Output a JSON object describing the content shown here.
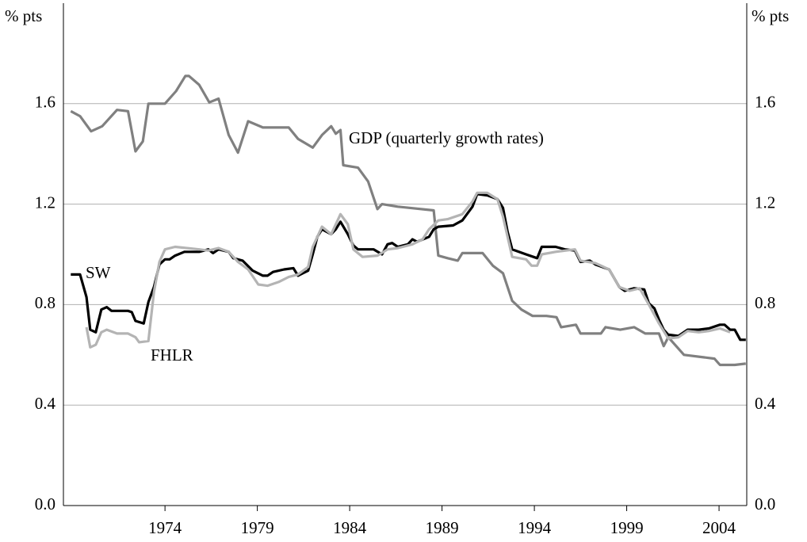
{
  "chart_data": {
    "type": "line",
    "ylabel": "% pts",
    "y2label": "% pts",
    "xlim": [
      1968.5,
      2005.5
    ],
    "xticks": [
      1974,
      1979,
      1984,
      1989,
      1994,
      1999,
      2004
    ],
    "ylim": [
      0,
      2
    ],
    "yticks": [
      {
        "value": 0,
        "label": "0.0"
      },
      0.4,
      0.8,
      1.2,
      1.6
    ],
    "y2lim": [
      0,
      2
    ],
    "y2ticks": [
      {
        "value": 0,
        "label": "0.0"
      },
      0.4,
      0.8,
      1.2,
      1.6
    ],
    "grid": true,
    "series": [
      {
        "name": "GDP (quarterly growth rates)",
        "color": "#808080",
        "x": [
          1968.9,
          1969.4,
          1970.0,
          1970.6,
          1971.4,
          1972.0,
          1972.4,
          1972.8,
          1973.1,
          1974.0,
          1974.6,
          1975.1,
          1975.3,
          1975.85,
          1976.4,
          1976.9,
          1977.45,
          1977.95,
          1978.5,
          1979.3,
          1980.7,
          1981.2,
          1982.0,
          1982.5,
          1983.0,
          1983.25,
          1983.5,
          1983.65,
          1984.45,
          1985.0,
          1985.5,
          1985.75,
          1986.6,
          1988.55,
          1988.8,
          1989.3,
          1989.85,
          1990.1,
          1991.2,
          1991.75,
          1992.3,
          1992.8,
          1993.3,
          1993.9,
          1994.65,
          1995.2,
          1995.45,
          1996.25,
          1996.5,
          1997.6,
          1997.85,
          1998.65,
          1999.4,
          2000.0,
          2000.75,
          2001.0,
          2001.25,
          2002.1,
          2003.2,
          2003.75,
          2004.05,
          2004.85,
          2005.45
        ],
        "values": [
          1.57,
          1.55,
          1.49,
          1.51,
          1.575,
          1.57,
          1.41,
          1.45,
          1.6,
          1.6,
          1.65,
          1.71,
          1.71,
          1.675,
          1.605,
          1.62,
          1.475,
          1.405,
          1.53,
          1.505,
          1.505,
          1.46,
          1.425,
          1.475,
          1.51,
          1.48,
          1.495,
          1.355,
          1.345,
          1.29,
          1.18,
          1.2,
          1.19,
          1.175,
          0.995,
          0.985,
          0.975,
          1.005,
          1.005,
          0.955,
          0.925,
          0.815,
          0.78,
          0.755,
          0.755,
          0.75,
          0.71,
          0.72,
          0.685,
          0.685,
          0.71,
          0.7,
          0.71,
          0.685,
          0.685,
          0.635,
          0.67,
          0.6,
          0.59,
          0.585,
          0.56,
          0.56,
          0.565
        ]
      },
      {
        "name": "SW",
        "color": "#000000",
        "x": [
          1968.9,
          1969.4,
          1969.75,
          1969.95,
          1970.25,
          1970.55,
          1970.85,
          1971.1,
          1972.0,
          1972.2,
          1972.4,
          1972.85,
          1973.1,
          1973.4,
          1973.7,
          1974.0,
          1974.25,
          1974.55,
          1975.05,
          1975.85,
          1976.35,
          1976.6,
          1976.9,
          1977.45,
          1977.7,
          1978.2,
          1978.75,
          1979.3,
          1979.55,
          1979.85,
          1980.45,
          1980.95,
          1981.2,
          1981.75,
          1982.0,
          1982.25,
          1982.5,
          1983.0,
          1983.25,
          1983.5,
          1983.9,
          1984.2,
          1984.45,
          1985.3,
          1985.75,
          1986.05,
          1986.3,
          1986.6,
          1987.15,
          1987.4,
          1987.65,
          1988.3,
          1988.55,
          1988.8,
          1989.6,
          1990.1,
          1990.65,
          1990.9,
          1991.45,
          1992.0,
          1992.3,
          1992.55,
          1992.8,
          1993.55,
          1994.15,
          1994.4,
          1995.15,
          1995.65,
          1996.2,
          1996.5,
          1997.0,
          1997.3,
          1998.05,
          1998.6,
          1998.9,
          1999.4,
          1999.95,
          2000.2,
          2000.5,
          2000.75,
          2001.0,
          2001.25,
          2001.8,
          2002.3,
          2002.9,
          2003.45,
          2004.05,
          2004.3,
          2004.6,
          2004.85,
          2005.15,
          2005.45
        ],
        "values": [
          0.92,
          0.92,
          0.83,
          0.7,
          0.69,
          0.78,
          0.79,
          0.775,
          0.775,
          0.77,
          0.735,
          0.725,
          0.81,
          0.87,
          0.96,
          0.98,
          0.98,
          0.995,
          1.01,
          1.01,
          1.02,
          1.005,
          1.02,
          1.01,
          0.985,
          0.975,
          0.935,
          0.915,
          0.915,
          0.93,
          0.94,
          0.945,
          0.915,
          0.935,
          1.0,
          1.07,
          1.1,
          1.08,
          1.1,
          1.13,
          1.08,
          1.035,
          1.02,
          1.02,
          1.0,
          1.04,
          1.045,
          1.03,
          1.04,
          1.06,
          1.05,
          1.07,
          1.1,
          1.11,
          1.115,
          1.135,
          1.19,
          1.24,
          1.235,
          1.22,
          1.185,
          1.09,
          1.02,
          1.0,
          0.985,
          1.03,
          1.03,
          1.02,
          1.015,
          0.97,
          0.975,
          0.96,
          0.94,
          0.87,
          0.855,
          0.865,
          0.86,
          0.805,
          0.785,
          0.74,
          0.7,
          0.68,
          0.675,
          0.7,
          0.7,
          0.705,
          0.72,
          0.72,
          0.7,
          0.7,
          0.66,
          0.66
        ]
      },
      {
        "name": "FHLR",
        "color": "#b4b4b4",
        "x": [
          1969.75,
          1969.95,
          1970.25,
          1970.55,
          1970.85,
          1971.4,
          1972.0,
          1972.4,
          1972.6,
          1973.1,
          1973.4,
          1973.7,
          1974.0,
          1974.55,
          1975.85,
          1976.35,
          1976.9,
          1977.45,
          1977.95,
          1978.5,
          1979.05,
          1979.55,
          1980.15,
          1980.7,
          1981.2,
          1981.75,
          1982.0,
          1982.5,
          1983.0,
          1983.5,
          1983.9,
          1984.2,
          1984.7,
          1985.5,
          1986.05,
          1986.6,
          1987.4,
          1987.95,
          1988.3,
          1988.8,
          1989.3,
          1990.1,
          1990.65,
          1990.9,
          1991.45,
          1992.0,
          1992.3,
          1992.8,
          1993.55,
          1993.85,
          1994.15,
          1994.4,
          1995.15,
          1996.2,
          1996.5,
          1997.3,
          1998.05,
          1998.6,
          1999.15,
          1999.7,
          2000.2,
          2000.75,
          2001.25,
          2001.8,
          2002.3,
          2002.9,
          2003.45,
          2004.05,
          2004.6
        ],
        "values": [
          0.71,
          0.63,
          0.64,
          0.69,
          0.7,
          0.685,
          0.685,
          0.67,
          0.65,
          0.655,
          0.85,
          0.97,
          1.02,
          1.03,
          1.02,
          1.015,
          1.025,
          1.01,
          0.97,
          0.94,
          0.88,
          0.875,
          0.89,
          0.91,
          0.92,
          0.95,
          1.03,
          1.11,
          1.08,
          1.16,
          1.12,
          1.02,
          0.99,
          0.995,
          1.02,
          1.025,
          1.04,
          1.06,
          1.1,
          1.135,
          1.14,
          1.16,
          1.21,
          1.245,
          1.245,
          1.22,
          1.15,
          0.99,
          0.98,
          0.955,
          0.955,
          1.0,
          1.01,
          1.02,
          0.975,
          0.965,
          0.94,
          0.87,
          0.855,
          0.865,
          0.8,
          0.725,
          0.665,
          0.67,
          0.695,
          0.69,
          0.695,
          0.705,
          0.69
        ]
      }
    ]
  }
}
